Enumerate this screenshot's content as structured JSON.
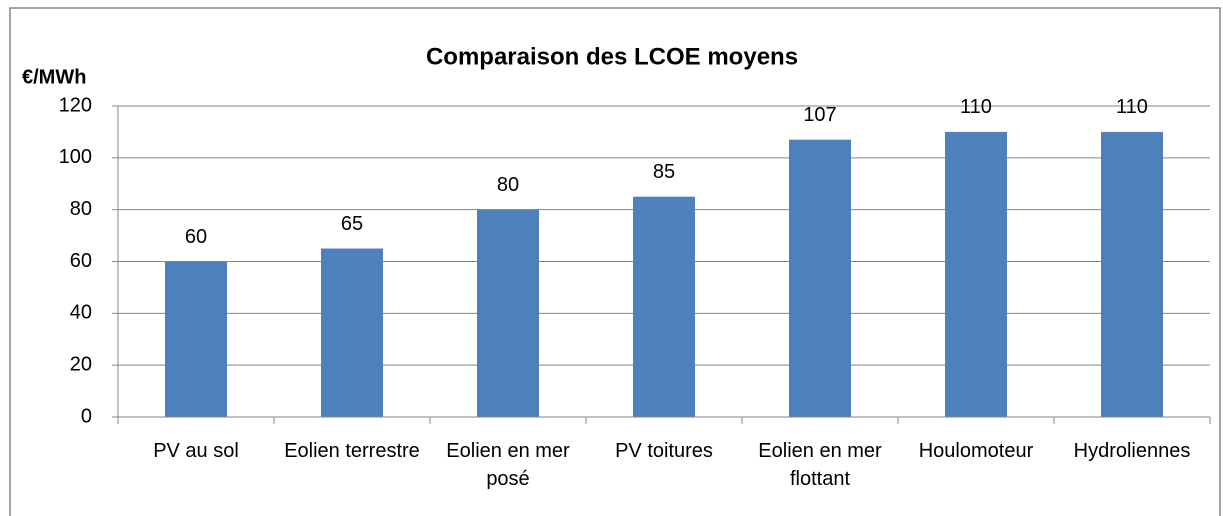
{
  "chart_data": {
    "type": "bar",
    "title": "Comparaison des LCOE moyens",
    "y_label": "€/MWh",
    "categories": [
      "PV au sol",
      "Eolien terrestre",
      "Eolien en mer posé",
      "PV toitures",
      "Eolien en mer flottant",
      "Houlomoteur",
      "Hydroliennes"
    ],
    "values": [
      60,
      65,
      80,
      85,
      107,
      110,
      110
    ],
    "color": "#4f81bd",
    "ylim": [
      0,
      120
    ],
    "yticks": [
      0,
      20,
      40,
      60,
      80,
      100,
      120
    ],
    "grid": true
  }
}
